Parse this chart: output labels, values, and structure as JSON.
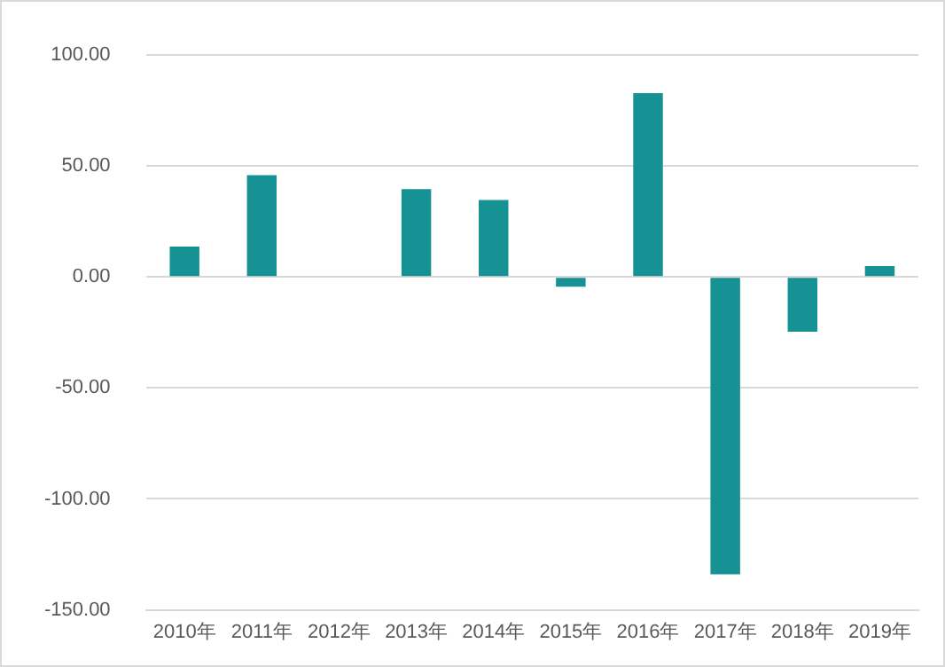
{
  "chart_data": {
    "type": "bar",
    "categories": [
      "2010年",
      "2011年",
      "2012年",
      "2013年",
      "2014年",
      "2015年",
      "2016年",
      "2017年",
      "2018年",
      "2019年"
    ],
    "values": [
      13.7,
      45.9,
      null,
      39.6,
      34.7,
      -4.4,
      82.8,
      -134,
      -24.7,
      4.9
    ],
    "color": "#169194",
    "ylim": [
      -150,
      100
    ],
    "yticks": [
      {
        "value": -150,
        "label": "-150.00"
      },
      {
        "value": -100,
        "label": "-100.00"
      },
      {
        "value": -50,
        "label": "-50.00"
      },
      {
        "value": 0,
        "label": "0.00"
      },
      {
        "value": 50,
        "label": "50.00"
      },
      {
        "value": 100,
        "label": "100.00"
      }
    ],
    "grid": "y"
  }
}
